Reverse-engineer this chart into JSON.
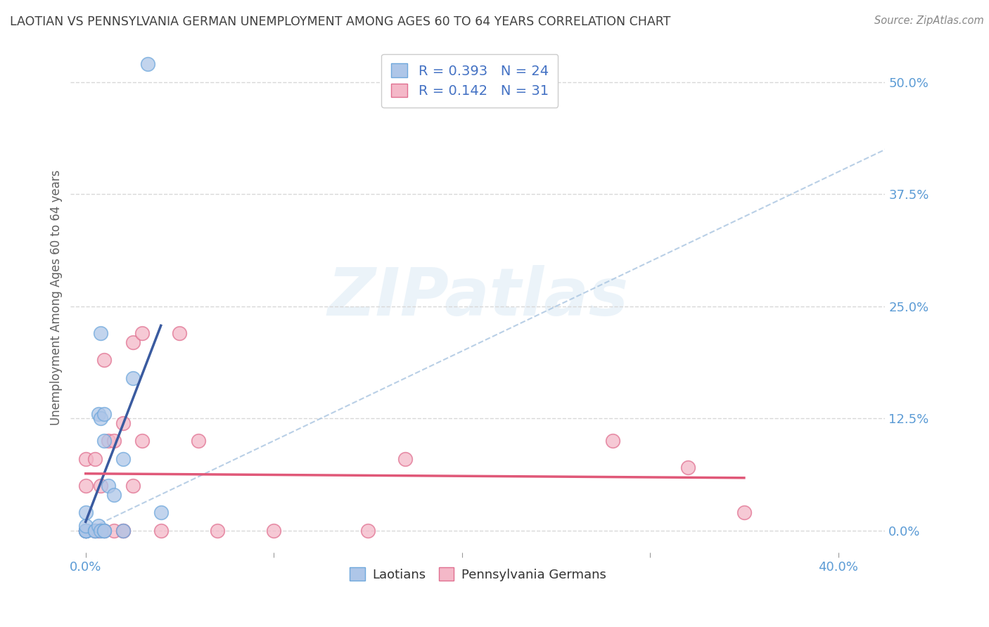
{
  "title": "LAOTIAN VS PENNSYLVANIA GERMAN UNEMPLOYMENT AMONG AGES 60 TO 64 YEARS CORRELATION CHART",
  "source": "Source: ZipAtlas.com",
  "ylabel": "Unemployment Among Ages 60 to 64 years",
  "xlabel_tick_vals": [
    0.0,
    0.1,
    0.2,
    0.3,
    0.4
  ],
  "ylabel_tick_vals": [
    0.0,
    0.125,
    0.25,
    0.375,
    0.5
  ],
  "ylabel_tick_labels": [
    "0.0%",
    "12.5%",
    "25.0%",
    "37.5%",
    "50.0%"
  ],
  "xmin": -0.008,
  "xmax": 0.425,
  "ymin": -0.025,
  "ymax": 0.545,
  "laotian_color": "#aec6e8",
  "laotian_edge": "#6fa8dc",
  "penn_color": "#f4b8c8",
  "penn_edge": "#e07090",
  "laotian_R": 0.393,
  "laotian_N": 24,
  "penn_R": 0.142,
  "penn_N": 31,
  "trend_blue": "#3a5ba0",
  "trend_pink": "#e05878",
  "dashed_color": "#a8c4e0",
  "legend_label1": "Laotians",
  "legend_label2": "Pennsylvania Germans",
  "watermark": "ZIPatlas",
  "bg_color": "#ffffff",
  "grid_color": "#d8d8d8",
  "tick_color": "#5b9bd5",
  "title_color": "#404040",
  "ylabel_color": "#606060",
  "laotian_x": [
    0.0,
    0.0,
    0.0,
    0.0,
    0.0,
    0.0,
    0.005,
    0.005,
    0.007,
    0.007,
    0.008,
    0.008,
    0.008,
    0.01,
    0.01,
    0.01,
    0.01,
    0.012,
    0.015,
    0.02,
    0.02,
    0.025,
    0.033,
    0.04
  ],
  "laotian_y": [
    0.0,
    0.0,
    0.0,
    0.0,
    0.005,
    0.02,
    0.0,
    0.0,
    0.005,
    0.13,
    0.0,
    0.125,
    0.22,
    0.0,
    0.0,
    0.1,
    0.13,
    0.05,
    0.04,
    0.0,
    0.08,
    0.17,
    0.52,
    0.02
  ],
  "penn_x": [
    0.0,
    0.0,
    0.0,
    0.0,
    0.0,
    0.005,
    0.005,
    0.007,
    0.008,
    0.01,
    0.01,
    0.012,
    0.015,
    0.015,
    0.02,
    0.02,
    0.02,
    0.025,
    0.025,
    0.03,
    0.03,
    0.04,
    0.05,
    0.06,
    0.07,
    0.1,
    0.15,
    0.17,
    0.28,
    0.32,
    0.35
  ],
  "penn_y": [
    0.0,
    0.0,
    0.0,
    0.05,
    0.08,
    0.0,
    0.08,
    0.0,
    0.05,
    0.0,
    0.19,
    0.1,
    0.0,
    0.1,
    0.0,
    0.0,
    0.12,
    0.05,
    0.21,
    0.1,
    0.22,
    0.0,
    0.22,
    0.1,
    0.0,
    0.0,
    0.0,
    0.08,
    0.1,
    0.07,
    0.02
  ]
}
